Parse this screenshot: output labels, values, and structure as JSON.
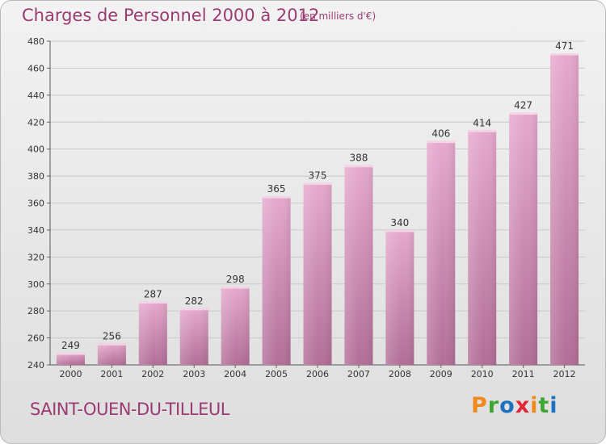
{
  "header": {
    "title": "Charges de Personnel 2000 à 2012",
    "subtitle": "(en milliers d'€)"
  },
  "footer": {
    "commune": "SAINT-OUEN-DU-TILLEUL",
    "logo": {
      "text": "Proxiti",
      "letters": [
        {
          "char": "P",
          "color": "#f08a1c"
        },
        {
          "char": "r",
          "color": "#3fa535"
        },
        {
          "char": "o",
          "color": "#1e73be"
        },
        {
          "char": "x",
          "color": "#e32636"
        },
        {
          "char": "i",
          "color": "#f08a1c"
        },
        {
          "char": "t",
          "color": "#3fa535"
        },
        {
          "char": "i",
          "color": "#1e73be"
        }
      ]
    }
  },
  "colors": {
    "bar_light": "#e6a9cd",
    "bar_dark": "#b26e97",
    "text_accent": "#9a3b72"
  },
  "chart_data": {
    "type": "bar",
    "title": "Charges de Personnel 2000 à 2012",
    "subtitle": "(en milliers d'€)",
    "categories": [
      "2000",
      "2001",
      "2002",
      "2003",
      "2004",
      "2005",
      "2006",
      "2007",
      "2008",
      "2009",
      "2010",
      "2011",
      "2012"
    ],
    "values": [
      249,
      256,
      287,
      282,
      298,
      365,
      375,
      388,
      340,
      406,
      414,
      427,
      471
    ],
    "ylim": [
      240,
      480
    ],
    "yticks": [
      240,
      260,
      280,
      300,
      320,
      340,
      360,
      380,
      400,
      420,
      440,
      460,
      480
    ],
    "grid": true,
    "data_labels": true
  }
}
